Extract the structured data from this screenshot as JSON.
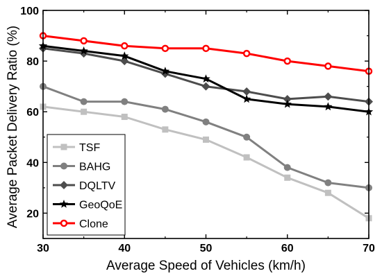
{
  "chart_data": {
    "type": "line",
    "title": "",
    "xlabel": "Average Speed of Vehicles (km/h)",
    "ylabel": "Average Packet Delivery Ratio (%)",
    "xlim": [
      30,
      70
    ],
    "ylim": [
      10,
      100
    ],
    "x_ticks": [
      30,
      40,
      50,
      60,
      70
    ],
    "y_ticks": [
      20,
      40,
      60,
      80,
      100
    ],
    "grid": false,
    "legend_position": "bottom-left",
    "x": [
      30,
      35,
      40,
      45,
      50,
      55,
      60,
      65,
      70
    ],
    "series": [
      {
        "name": "TSF",
        "color": "#c0c0c0",
        "marker": "square",
        "values": [
          62,
          60,
          58,
          53,
          49,
          42,
          34,
          28,
          18
        ]
      },
      {
        "name": "BAHG",
        "color": "#808080",
        "marker": "circle",
        "values": [
          70,
          64,
          64,
          61,
          56,
          50,
          38,
          32,
          30
        ]
      },
      {
        "name": "DQLTV",
        "color": "#4d4d4d",
        "marker": "diamond",
        "values": [
          85,
          83,
          80,
          75,
          70,
          68,
          65,
          66,
          64
        ]
      },
      {
        "name": "GeoQoE",
        "color": "#000000",
        "marker": "star",
        "values": [
          86,
          84,
          82,
          76,
          73,
          65,
          63,
          62,
          60
        ]
      },
      {
        "name": "Clone",
        "color": "#ff0000",
        "marker": "circle-open",
        "values": [
          90,
          88,
          86,
          85,
          85,
          83,
          80,
          78,
          76
        ]
      }
    ]
  }
}
